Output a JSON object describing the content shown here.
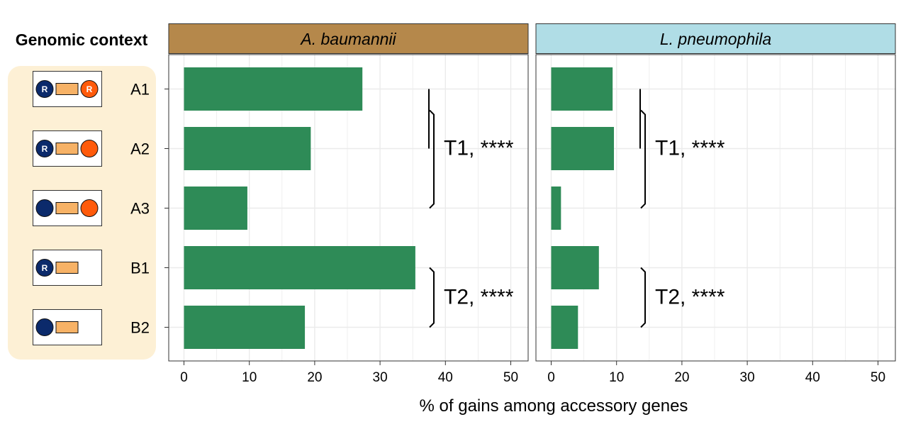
{
  "chart_data": {
    "type": "bar",
    "orientation": "horizontal",
    "legend_title": "Genomic context",
    "categories": [
      "A1",
      "A2",
      "A3",
      "B1",
      "B2"
    ],
    "context_diagrams": [
      {
        "category": "A1",
        "left_circle": "navy",
        "left_label": "R",
        "rect": true,
        "right_circle": "orange",
        "right_label": "R"
      },
      {
        "category": "A2",
        "left_circle": "navy",
        "left_label": "R",
        "rect": true,
        "right_circle": "orange",
        "right_label": ""
      },
      {
        "category": "A3",
        "left_circle": "navy",
        "left_label": "",
        "rect": true,
        "right_circle": "orange",
        "right_label": ""
      },
      {
        "category": "B1",
        "left_circle": "navy",
        "left_label": "R",
        "rect": true,
        "right_circle": null,
        "right_label": ""
      },
      {
        "category": "B2",
        "left_circle": "navy",
        "left_label": "",
        "rect": true,
        "right_circle": null,
        "right_label": ""
      }
    ],
    "xlabel": "% of gains among accessory genes",
    "xlim": [
      0,
      52
    ],
    "xticks": [
      0,
      10,
      20,
      30,
      40,
      50
    ],
    "panels": [
      {
        "title": "A. baumannii",
        "header_color": "#b5884b",
        "values": [
          27.3,
          19.4,
          9.7,
          35.4,
          18.5
        ],
        "annotations": [
          {
            "label": "T1, ****",
            "inner": [
              "A1",
              "A2"
            ],
            "outer": [
              "A1",
              "A3"
            ]
          },
          {
            "label": "T2, ****",
            "outer": [
              "B1",
              "B2"
            ]
          }
        ]
      },
      {
        "title": "L. pneumophila",
        "header_color": "#b0dde6",
        "values": [
          9.4,
          9.6,
          1.5,
          7.3,
          4.1
        ],
        "annotations": [
          {
            "label": "T1, ****",
            "inner": [
              "A1",
              "A2"
            ],
            "outer": [
              "A1",
              "A3"
            ]
          },
          {
            "label": "T2, ****",
            "outer": [
              "B1",
              "B2"
            ]
          }
        ]
      }
    ],
    "colors": {
      "bar": "#2e8b57",
      "grid": "#ebebeb",
      "legend_bg": "#fdf0d5",
      "navy": "#0b2a6b",
      "orange": "#ff5a0a",
      "rect": "#f7b266"
    }
  }
}
